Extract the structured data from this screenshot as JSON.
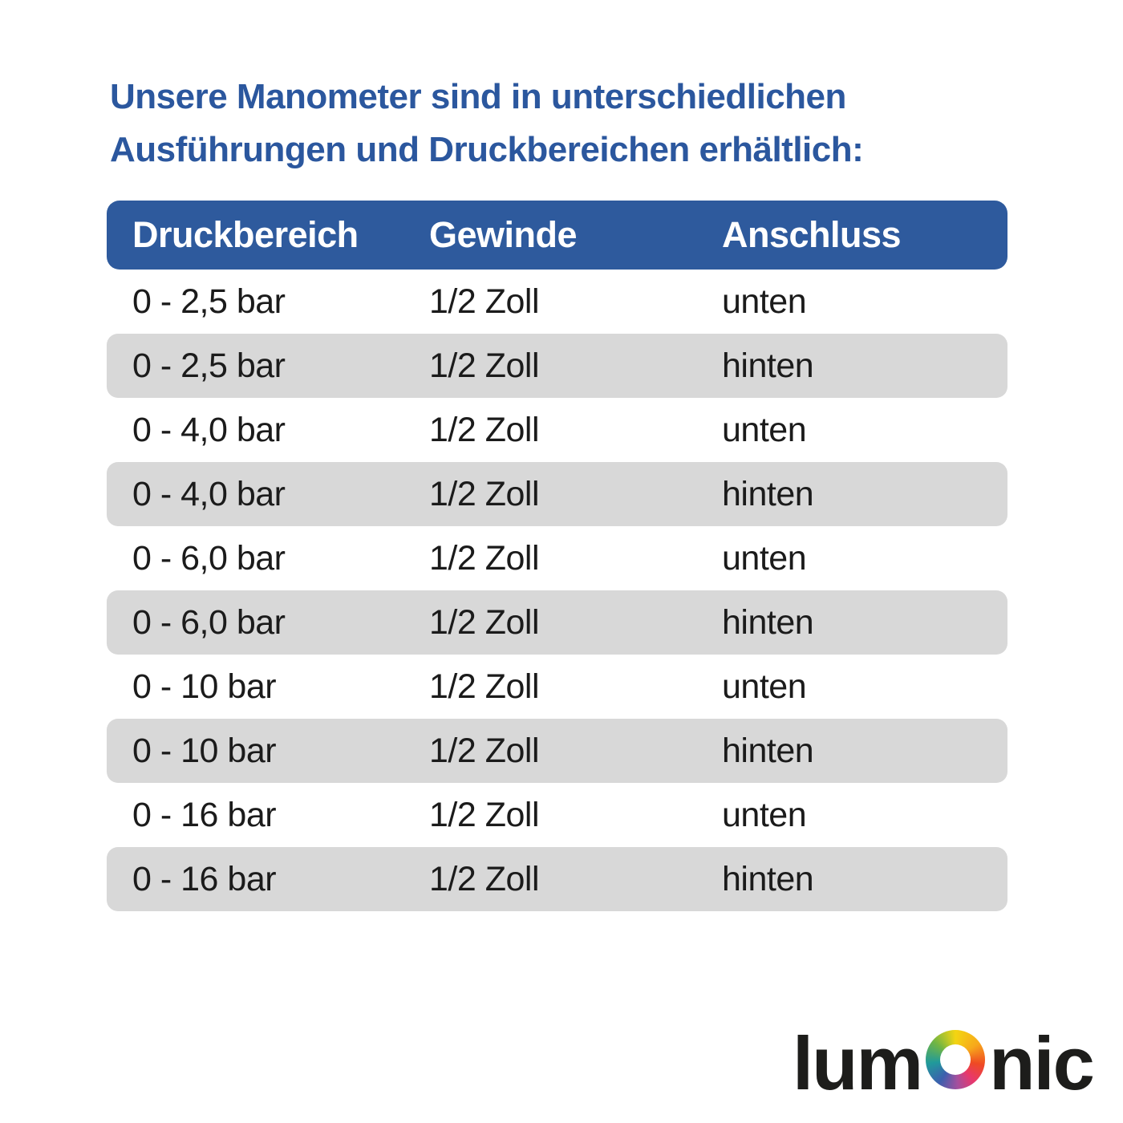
{
  "header": {
    "line1": "Unsere Manometer sind in unterschiedlichen",
    "line2": "Ausführungen und Druckbereichen erhältlich:"
  },
  "table": {
    "columns": [
      "Druckbereich",
      "Gewinde",
      "Anschluss"
    ],
    "rows": [
      [
        "0 - 2,5 bar",
        "1/2 Zoll",
        "unten"
      ],
      [
        "0 - 2,5 bar",
        "1/2 Zoll",
        "hinten"
      ],
      [
        "0 - 4,0 bar",
        "1/2 Zoll",
        "unten"
      ],
      [
        "0 - 4,0 bar",
        "1/2 Zoll",
        "hinten"
      ],
      [
        "0 - 6,0 bar",
        "1/2 Zoll",
        "unten"
      ],
      [
        "0 - 6,0 bar",
        "1/2 Zoll",
        "hinten"
      ],
      [
        "0 - 10 bar",
        "1/2 Zoll",
        "unten"
      ],
      [
        "0 - 10 bar",
        "1/2 Zoll",
        "hinten"
      ],
      [
        "0 - 16 bar",
        "1/2 Zoll",
        "unten"
      ],
      [
        "0 - 16 bar",
        "1/2 Zoll",
        "hinten"
      ]
    ]
  },
  "logo": {
    "prefix": "lum",
    "suffix": "nic",
    "o_icon": "color-wheel-ring-icon",
    "wheel_colors": [
      "#f3d512",
      "#f7a81b",
      "#ef4a23",
      "#e8386d",
      "#a44f9e",
      "#3c5fae",
      "#209a9b",
      "#70b544"
    ]
  },
  "colors": {
    "page_bg": "#ffffff",
    "heading_blue": "#2b579e",
    "header_blue": "#2e5a9d",
    "row_gray": "#d8d8d8",
    "text_dark": "#1b1b1b",
    "logo_dark": "#1d1d1b"
  }
}
